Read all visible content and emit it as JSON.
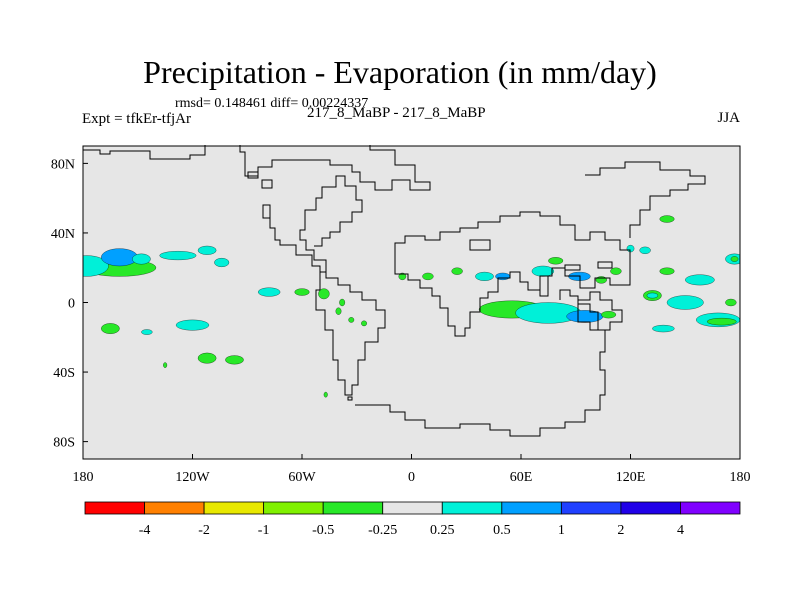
{
  "chart_data": {
    "type": "map",
    "title": "Precipitation - Evaporation (in mm/day)",
    "stats_line": "rmsd= 0.148461  diff= 0.00224337",
    "expt_label": "Expt = tfkEr-tfjAr",
    "case_label": "217_8_MaBP - 217_8_MaBP",
    "season": "JJA",
    "x_ticks": [
      "180",
      "120W",
      "60W",
      "0",
      "60E",
      "120E",
      "180"
    ],
    "y_ticks": [
      "80N",
      "40N",
      "0",
      "40S",
      "80S"
    ],
    "lon_range": [
      -180,
      180
    ],
    "lat_range": [
      -90,
      90
    ],
    "colorbar": {
      "labels": [
        "-4",
        "-2",
        "-1",
        "-0.5",
        "-0.25",
        "0.25",
        "0.5",
        "1",
        "2",
        "4"
      ],
      "colors": [
        "#ff0000",
        "#ff8000",
        "#e8e800",
        "#80f000",
        "#28e828",
        "#e6e6e6",
        "#00f0d8",
        "#00a0ff",
        "#2040ff",
        "#2000e8",
        "#8000ff"
      ]
    },
    "background_color": "#e6e6e6",
    "anomaly_patches": [
      {
        "lon": -160,
        "lat": 20,
        "rx": 20,
        "ry": 5,
        "class": "-0.5"
      },
      {
        "lon": -178,
        "lat": 21,
        "rx": 12,
        "ry": 6,
        "class": "0.25"
      },
      {
        "lon": -160,
        "lat": 26,
        "rx": 10,
        "ry": 5,
        "class": "0.5"
      },
      {
        "lon": -148,
        "lat": 25,
        "rx": 5,
        "ry": 3,
        "class": "0.25"
      },
      {
        "lon": -128,
        "lat": 27,
        "rx": 10,
        "ry": 2.5,
        "class": "0.25"
      },
      {
        "lon": -112,
        "lat": 30,
        "rx": 5,
        "ry": 2.5,
        "class": "0.25"
      },
      {
        "lon": -104,
        "lat": 23,
        "rx": 4,
        "ry": 2.5,
        "class": "0.25"
      },
      {
        "lon": -165,
        "lat": -15,
        "rx": 5,
        "ry": 3,
        "class": "-0.5"
      },
      {
        "lon": -120,
        "lat": -13,
        "rx": 9,
        "ry": 3,
        "class": "0.25"
      },
      {
        "lon": -145,
        "lat": -17,
        "rx": 3,
        "ry": 1.5,
        "class": "0.25"
      },
      {
        "lon": -112,
        "lat": -32,
        "rx": 5,
        "ry": 3,
        "class": "-0.5"
      },
      {
        "lon": -97,
        "lat": -33,
        "rx": 5,
        "ry": 2.5,
        "class": "-0.5"
      },
      {
        "lon": -135,
        "lat": -36,
        "rx": 1,
        "ry": 1.5,
        "class": "-0.5"
      },
      {
        "lon": -78,
        "lat": 6,
        "rx": 6,
        "ry": 2.5,
        "class": "0.25"
      },
      {
        "lon": -60,
        "lat": 6,
        "rx": 4,
        "ry": 2,
        "class": "-0.5"
      },
      {
        "lon": -48,
        "lat": 5,
        "rx": 3,
        "ry": 3,
        "class": "-0.5"
      },
      {
        "lon": -38,
        "lat": 0,
        "rx": 1.5,
        "ry": 2,
        "class": "-0.5"
      },
      {
        "lon": -40,
        "lat": -5,
        "rx": 1.5,
        "ry": 2,
        "class": "-0.5"
      },
      {
        "lon": -33,
        "lat": -10,
        "rx": 1.5,
        "ry": 1.5,
        "class": "-0.5"
      },
      {
        "lon": -26,
        "lat": -12,
        "rx": 1.5,
        "ry": 1.5,
        "class": "-0.5"
      },
      {
        "lon": -47,
        "lat": -53,
        "rx": 1,
        "ry": 1.5,
        "class": "-0.5"
      },
      {
        "lon": -5,
        "lat": 15,
        "rx": 2,
        "ry": 2,
        "class": "-0.5"
      },
      {
        "lon": 9,
        "lat": 15,
        "rx": 3,
        "ry": 2,
        "class": "-0.5"
      },
      {
        "lon": 25,
        "lat": 18,
        "rx": 3,
        "ry": 2,
        "class": "-0.5"
      },
      {
        "lon": 40,
        "lat": 15,
        "rx": 5,
        "ry": 2.5,
        "class": "0.25"
      },
      {
        "lon": 50,
        "lat": 15,
        "rx": 4,
        "ry": 2,
        "class": "0.5"
      },
      {
        "lon": 72,
        "lat": 18,
        "rx": 6,
        "ry": 3,
        "class": "0.25"
      },
      {
        "lon": 79,
        "lat": 24,
        "rx": 4,
        "ry": 2,
        "class": "-0.5"
      },
      {
        "lon": 92,
        "lat": 15,
        "rx": 6,
        "ry": 2.5,
        "class": "0.5"
      },
      {
        "lon": 104,
        "lat": 13,
        "rx": 3,
        "ry": 2,
        "class": "-0.5"
      },
      {
        "lon": 112,
        "lat": 18,
        "rx": 3,
        "ry": 2,
        "class": "-0.5"
      },
      {
        "lon": 120,
        "lat": 31,
        "rx": 2,
        "ry": 2,
        "class": "0.25"
      },
      {
        "lon": 128,
        "lat": 30,
        "rx": 3,
        "ry": 2,
        "class": "0.25"
      },
      {
        "lon": 140,
        "lat": 18,
        "rx": 4,
        "ry": 2,
        "class": "-0.5"
      },
      {
        "lon": 158,
        "lat": 13,
        "rx": 8,
        "ry": 3,
        "class": "0.25"
      },
      {
        "lon": 177,
        "lat": 25,
        "rx": 5,
        "ry": 3,
        "class": "0.25"
      },
      {
        "lon": 177,
        "lat": 25,
        "rx": 2,
        "ry": 1.5,
        "class": "-0.5"
      },
      {
        "lon": 140,
        "lat": 48,
        "rx": 4,
        "ry": 2,
        "class": "-0.5"
      },
      {
        "lon": 175,
        "lat": 0,
        "rx": 3,
        "ry": 2,
        "class": "-0.5"
      },
      {
        "lon": 55,
        "lat": -4,
        "rx": 18,
        "ry": 5,
        "class": "-0.5"
      },
      {
        "lon": 75,
        "lat": -6,
        "rx": 18,
        "ry": 6,
        "class": "0.25"
      },
      {
        "lon": 95,
        "lat": -8,
        "rx": 10,
        "ry": 3.5,
        "class": "0.5"
      },
      {
        "lon": 108,
        "lat": -7,
        "rx": 4,
        "ry": 2,
        "class": "-0.5"
      },
      {
        "lon": 150,
        "lat": 0,
        "rx": 10,
        "ry": 4,
        "class": "0.25"
      },
      {
        "lon": 168,
        "lat": -10,
        "rx": 12,
        "ry": 4,
        "class": "0.25"
      },
      {
        "lon": 170,
        "lat": -11,
        "rx": 8,
        "ry": 2,
        "class": "-0.5"
      },
      {
        "lon": 138,
        "lat": -15,
        "rx": 6,
        "ry": 2,
        "class": "0.25"
      },
      {
        "lon": 132,
        "lat": 4,
        "rx": 5,
        "ry": 3,
        "class": "-0.5"
      },
      {
        "lon": 132,
        "lat": 4,
        "rx": 3,
        "ry": 1.5,
        "class": "0.25"
      }
    ]
  }
}
